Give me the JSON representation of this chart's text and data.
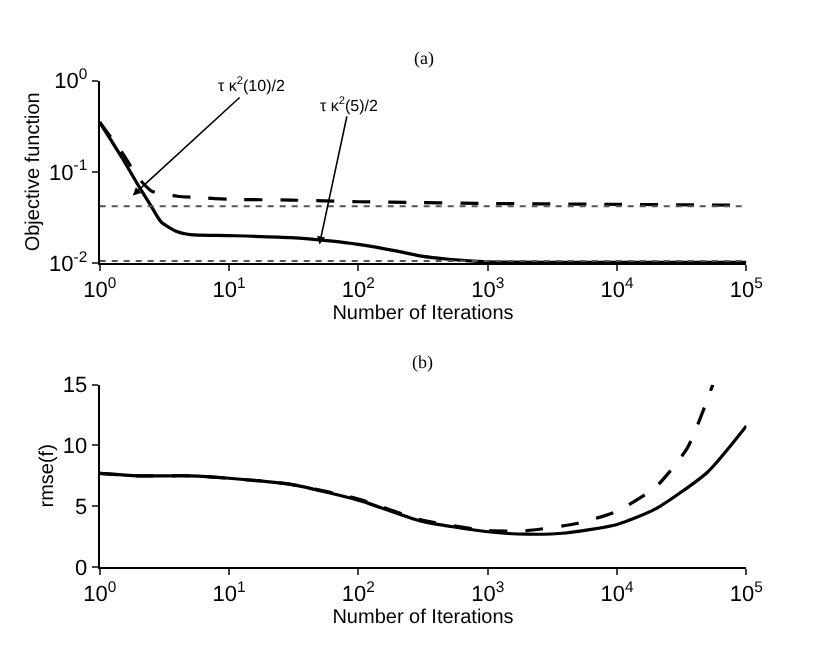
{
  "chart_data": [
    {
      "type": "line",
      "title": "(a)",
      "xlabel": "Number of Iterations",
      "ylabel": "Objective function",
      "log": "xy",
      "marker": "none",
      "xlim": [
        1,
        100000
      ],
      "ylim": [
        0.01,
        1
      ],
      "xticks": [
        {
          "value": 1,
          "label": "10$^{0}$"
        },
        {
          "value": 10,
          "label": "10$^{1}$"
        },
        {
          "value": 100,
          "label": "10$^{2}$"
        },
        {
          "value": 1000,
          "label": "10$^{3}$"
        },
        {
          "value": 10000,
          "label": "10$^{4}$"
        },
        {
          "value": 100000,
          "label": "10$^{5}$"
        }
      ],
      "yticks": [
        {
          "value": 0.01,
          "label": "10$^{-2}$"
        },
        {
          "value": 0.1,
          "label": "10$^{-1}$"
        },
        {
          "value": 1,
          "label": "10$^{0}$"
        }
      ],
      "series": [
        {
          "color": "#000000",
          "line_style": "dashed",
          "x": [
            1,
            1.5,
            2,
            2.5,
            3,
            4,
            6,
            10,
            30,
            100,
            300,
            1000,
            10000,
            100000
          ],
          "values": [
            0.35,
            0.16,
            0.085,
            0.062,
            0.057,
            0.054,
            0.052,
            0.05,
            0.049,
            0.047,
            0.046,
            0.045,
            0.044,
            0.043
          ]
        },
        {
          "color": "#000000",
          "line_style": "solid",
          "x": [
            1,
            1.5,
            2,
            2.5,
            3,
            4,
            5,
            10,
            30,
            60,
            100,
            200,
            300,
            500,
            1000,
            10000,
            100000
          ],
          "values": [
            0.35,
            0.14,
            0.07,
            0.042,
            0.028,
            0.022,
            0.0205,
            0.02,
            0.019,
            0.0175,
            0.016,
            0.0135,
            0.012,
            0.011,
            0.0103,
            0.0102,
            0.0102
          ]
        }
      ],
      "ref_lines": [
        {
          "axis": "y",
          "value": 0.042,
          "color": "#555555",
          "line_style": "dotted"
        },
        {
          "axis": "y",
          "value": 0.0105,
          "color": "#555555",
          "line_style": "dotted"
        }
      ],
      "annotations": [
        {
          "text": "τ κ$^{2}$(10)/2",
          "x": 1.8,
          "y": 0.055
        },
        {
          "text": "τ κ$^{2}$(5)/2",
          "x": 50,
          "y": 0.016
        }
      ]
    },
    {
      "type": "line",
      "title": "(b)",
      "xlabel": "Number of Iterations",
      "ylabel": "rmse(f)",
      "log": "x",
      "marker": "none",
      "xlim": [
        1,
        100000
      ],
      "ylim": [
        0,
        15
      ],
      "xticks": [
        {
          "value": 1,
          "label": "10$^{0}$"
        },
        {
          "value": 10,
          "label": "10$^{1}$"
        },
        {
          "value": 100,
          "label": "10$^{2}$"
        },
        {
          "value": 1000,
          "label": "10$^{3}$"
        },
        {
          "value": 10000,
          "label": "10$^{4}$"
        },
        {
          "value": 100000,
          "label": "10$^{5}$"
        }
      ],
      "yticks": [
        0,
        5,
        10,
        15
      ],
      "series": [
        {
          "color": "#000000",
          "line_style": "dashed",
          "x": [
            1,
            2,
            5,
            10,
            30,
            100,
            300,
            1000,
            2000,
            5000,
            10000,
            20000,
            35000,
            55000
          ],
          "values": [
            7.7,
            7.5,
            7.5,
            7.3,
            6.8,
            5.6,
            3.9,
            3.0,
            3.0,
            3.6,
            4.6,
            6.6,
            9.8,
            15
          ]
        },
        {
          "color": "#000000",
          "line_style": "solid",
          "x": [
            1,
            2,
            5,
            10,
            30,
            100,
            300,
            1000,
            2000,
            4000,
            10000,
            20000,
            50000,
            100000
          ],
          "values": [
            7.7,
            7.5,
            7.5,
            7.3,
            6.8,
            5.5,
            3.8,
            2.9,
            2.7,
            2.8,
            3.5,
            4.8,
            7.8,
            11.6
          ]
        }
      ]
    }
  ]
}
